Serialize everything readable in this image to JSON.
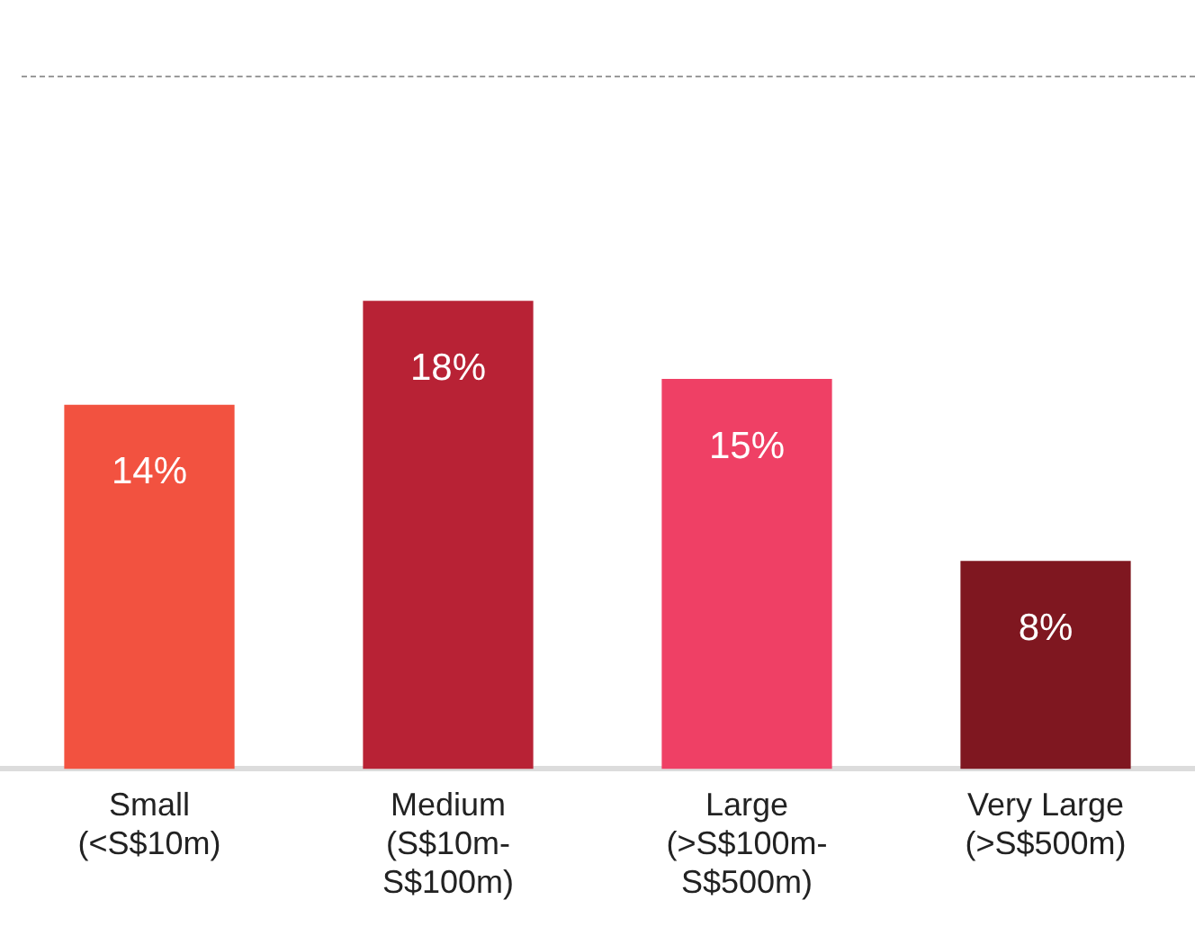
{
  "chart_data": {
    "type": "bar",
    "categories": [
      "Small (<S$10m)",
      "Medium (S$10m-S$100m)",
      "Large (>S$100m-S$500m)",
      "Very Large (>S$500m)"
    ],
    "values": [
      14,
      18,
      15,
      8
    ],
    "colors": [
      "#f25240",
      "#b82235",
      "#ef4065",
      "#7f1720"
    ],
    "value_labels": [
      "14%",
      "18%",
      "15%",
      "8%"
    ],
    "grid": false,
    "legend": false
  }
}
